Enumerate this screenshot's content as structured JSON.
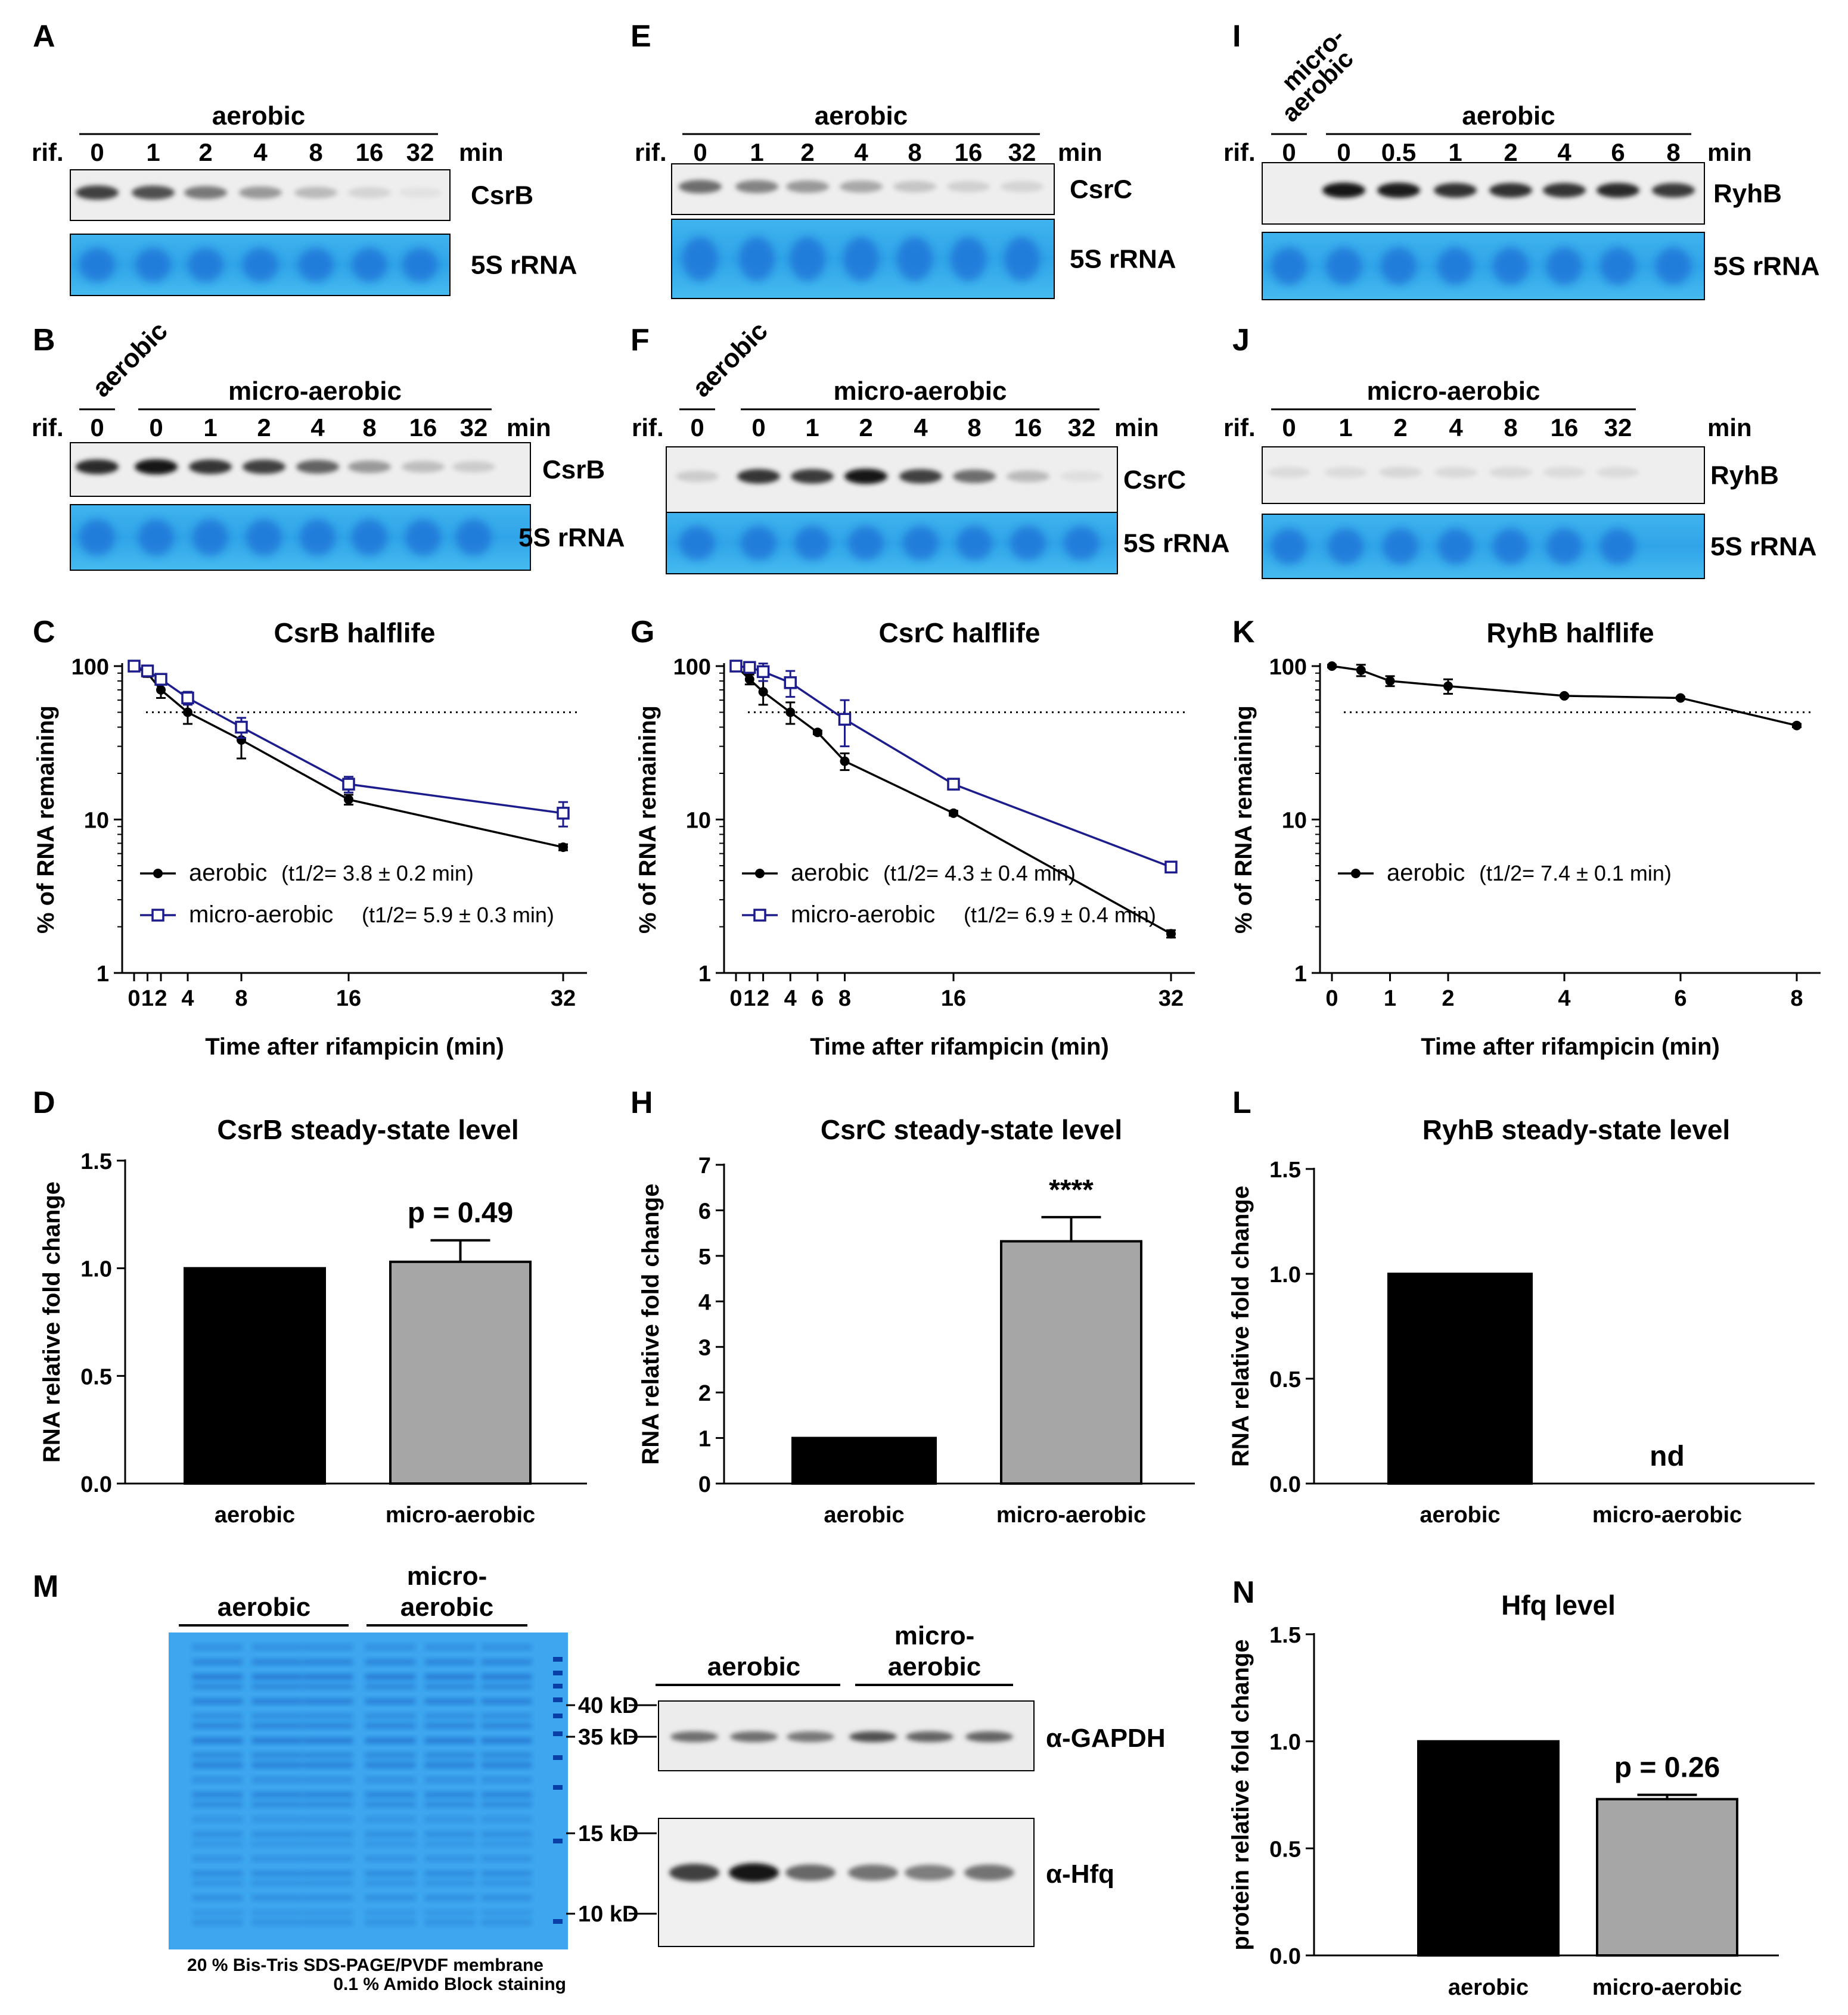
{
  "northern": {
    "rif": "rif.",
    "min": "min",
    "aerobic": "aerobic",
    "micro": "micro-aerobic",
    "micro_top": "micro-",
    "micro_bottom": "aerobic",
    "rrna": "5S rRNA",
    "blots": [
      {
        "id": "A",
        "rna": "CsrB",
        "condition": "aerobic",
        "lanes": [
          "0",
          "1",
          "2",
          "4",
          "8",
          "16",
          "32"
        ],
        "intensity": [
          0.75,
          0.68,
          0.5,
          0.35,
          0.2,
          0.08,
          0.02
        ]
      },
      {
        "id": "B",
        "rna": "CsrB",
        "condition": "micro",
        "leading": "aerobic",
        "lanes": [
          "0",
          "0",
          "1",
          "2",
          "4",
          "8",
          "16",
          "32"
        ],
        "intensity": [
          0.85,
          0.95,
          0.8,
          0.75,
          0.6,
          0.35,
          0.18,
          0.12
        ]
      },
      {
        "id": "E",
        "rna": "CsrC",
        "condition": "aerobic",
        "lanes": [
          "0",
          "1",
          "2",
          "4",
          "8",
          "16",
          "32"
        ],
        "intensity": [
          0.55,
          0.45,
          0.35,
          0.28,
          0.15,
          0.1,
          0.08
        ]
      },
      {
        "id": "F",
        "rna": "CsrC",
        "condition": "micro",
        "leading": "aerobic",
        "lanes": [
          "0",
          "0",
          "1",
          "2",
          "4",
          "8",
          "16",
          "32"
        ],
        "intensity": [
          0.12,
          0.8,
          0.78,
          0.95,
          0.75,
          0.55,
          0.2,
          0.03
        ]
      },
      {
        "id": "I",
        "rna": "RyhB",
        "condition": "aerobic",
        "leading": "micro",
        "lanes": [
          "0",
          "0",
          "0.5",
          "1",
          "2",
          "4",
          "6",
          "8"
        ],
        "intensity": [
          0.0,
          0.95,
          0.92,
          0.82,
          0.82,
          0.8,
          0.85,
          0.78
        ]
      },
      {
        "id": "J",
        "rna": "RyhB",
        "condition": "micro",
        "lanes": [
          "0",
          "1",
          "2",
          "4",
          "8",
          "16",
          "32"
        ],
        "intensity": [
          0.05,
          0.05,
          0.07,
          0.06,
          0.06,
          0.05,
          0.05
        ]
      }
    ]
  },
  "chart_data": [
    {
      "id": "C",
      "type": "line",
      "title": "CsrB halflife",
      "xlabel": "Time after rifampicin (min)",
      "ylabel": "% of RNA remaining",
      "yscale": "log",
      "ylim": [
        1,
        100
      ],
      "yticks": [
        "1",
        "10",
        "100"
      ],
      "xlim": [
        0,
        32
      ],
      "xticks": [
        {
          "v": 0,
          "t": "0"
        },
        {
          "v": 1,
          "t": "1"
        },
        {
          "v": 2,
          "t": "2"
        },
        {
          "v": 4,
          "t": "4"
        },
        {
          "v": 8,
          "t": "8"
        },
        {
          "v": 16,
          "t": "16"
        },
        {
          "v": 32,
          "t": "32"
        }
      ],
      "threshold": 50,
      "series": [
        {
          "name": "aerobic",
          "half_life": "(t1/2= 3.8 ± 0.2 min)",
          "color": "#000000",
          "marker": "circle",
          "x": [
            0,
            1,
            2,
            4,
            8,
            16,
            32
          ],
          "y": [
            100,
            90,
            70,
            50,
            33,
            13.5,
            6.6
          ],
          "err": [
            3,
            5,
            8,
            8,
            8,
            1,
            0.3
          ]
        },
        {
          "name": "micro-aerobic",
          "half_life": "(t1/2= 5.9 ± 0.3 min)",
          "color": "#1c1c8c",
          "marker": "square",
          "x": [
            0,
            1,
            2,
            4,
            8,
            16,
            32
          ],
          "y": [
            100,
            93,
            82,
            62,
            40,
            17,
            11
          ],
          "err": [
            3,
            5,
            5,
            6,
            6,
            2,
            2
          ]
        }
      ]
    },
    {
      "id": "G",
      "type": "line",
      "title": "CsrC halflife",
      "xlabel": "Time after rifampicin (min)",
      "ylabel": "% of RNA remaining",
      "yscale": "log",
      "ylim": [
        1,
        100
      ],
      "yticks": [
        "1",
        "10",
        "100"
      ],
      "xlim": [
        0,
        32
      ],
      "xticks": [
        {
          "v": 0,
          "t": "0"
        },
        {
          "v": 1,
          "t": "1"
        },
        {
          "v": 2,
          "t": "2"
        },
        {
          "v": 4,
          "t": "4"
        },
        {
          "v": 6,
          "t": "6"
        },
        {
          "v": 8,
          "t": "8"
        },
        {
          "v": 16,
          "t": "16"
        },
        {
          "v": 32,
          "t": "32"
        }
      ],
      "threshold": 50,
      "series": [
        {
          "name": "aerobic",
          "half_life": "(t1/2= 4.3 ± 0.4 min)",
          "color": "#000000",
          "marker": "circle",
          "x": [
            0,
            1,
            2,
            4,
            6,
            8,
            16,
            32
          ],
          "y": [
            100,
            82,
            68,
            50,
            37,
            24,
            11,
            1.8
          ],
          "err": [
            3,
            6,
            12,
            8,
            1,
            3,
            0.4,
            0.1
          ]
        },
        {
          "name": "micro-aerobic",
          "half_life": "(t1/2= 6.9 ± 0.4 min)",
          "color": "#1c1c8c",
          "marker": "square",
          "x": [
            0,
            1,
            2,
            4,
            8,
            16,
            32
          ],
          "y": [
            100,
            98,
            92,
            78,
            45,
            17,
            4.9
          ],
          "err": [
            3,
            5,
            12,
            15,
            15,
            1,
            0.3
          ]
        }
      ]
    },
    {
      "id": "K",
      "type": "line",
      "title": "RyhB halflife",
      "xlabel": "Time after rifampicin (min)",
      "ylabel": "% of RNA remaining",
      "yscale": "log",
      "ylim": [
        1,
        100
      ],
      "yticks": [
        "1",
        "10",
        "100"
      ],
      "xlim": [
        0,
        8
      ],
      "xticks": [
        {
          "v": 0,
          "t": "0"
        },
        {
          "v": 1,
          "t": "1"
        },
        {
          "v": 2,
          "t": "2"
        },
        {
          "v": 4,
          "t": "4"
        },
        {
          "v": 6,
          "t": "6"
        },
        {
          "v": 8,
          "t": "8"
        }
      ],
      "threshold": 50,
      "series": [
        {
          "name": "aerobic",
          "half_life": "(t1/2= 7.4 ± 0.1 min)",
          "color": "#000000",
          "marker": "circle",
          "x": [
            0,
            0.5,
            1,
            2,
            4,
            6,
            8
          ],
          "y": [
            100,
            94,
            80,
            74,
            64,
            62,
            41
          ],
          "err": [
            2,
            8,
            6,
            8,
            1,
            1,
            1
          ]
        }
      ]
    },
    {
      "id": "D",
      "type": "bar",
      "title": "CsrB steady-state level",
      "ylabel": "RNA relative fold change",
      "ylim": [
        0,
        1.5
      ],
      "yticks": [
        "0.0",
        "0.5",
        "1.0",
        "1.5"
      ],
      "categories": [
        "aerobic",
        "micro-aerobic"
      ],
      "values": [
        1.0,
        1.03
      ],
      "err": [
        0,
        0.1
      ],
      "colors": [
        "#000000",
        "#a6a6a6"
      ],
      "annotation": "p = 0.49"
    },
    {
      "id": "H",
      "type": "bar",
      "title": "CsrC steady-state level",
      "ylabel": "RNA relative fold change",
      "ylim": [
        0,
        7
      ],
      "yticks": [
        "0",
        "1",
        "2",
        "3",
        "4",
        "5",
        "6",
        "7"
      ],
      "categories": [
        "aerobic",
        "micro-aerobic"
      ],
      "values": [
        1.0,
        5.32
      ],
      "err": [
        0,
        0.53
      ],
      "colors": [
        "#000000",
        "#a6a6a6"
      ],
      "annotation": "****"
    },
    {
      "id": "L",
      "type": "bar",
      "title": "RyhB steady-state level",
      "ylabel": "RNA relative fold change",
      "ylim": [
        0,
        1.5
      ],
      "yticks": [
        "0.0",
        "0.5",
        "1.0",
        "1.5"
      ],
      "categories": [
        "aerobic",
        "micro-aerobic"
      ],
      "values": [
        1.0,
        0
      ],
      "err": [
        0,
        0
      ],
      "colors": [
        "#000000",
        "#a6a6a6"
      ],
      "annotation": "nd"
    },
    {
      "id": "N",
      "type": "bar",
      "title": "Hfq level",
      "ylabel": "protein relative fold change",
      "ylim": [
        0,
        1.5
      ],
      "yticks": [
        "0.0",
        "0.5",
        "1.0",
        "1.5"
      ],
      "categories": [
        "aerobic",
        "micro-aerobic"
      ],
      "values": [
        1.0,
        0.73
      ],
      "err": [
        0,
        0.02
      ],
      "colors": [
        "#000000",
        "#a6a6a6"
      ],
      "annotation": "p = 0.26"
    }
  ],
  "panel_M": {
    "label": "M",
    "aerobic": "aerobic",
    "micro_top": "micro-",
    "micro_bottom": "aerobic",
    "markers": [
      "40 kD",
      "35 kD",
      "15 kD",
      "10 kD"
    ],
    "gapdh": "α-GAPDH",
    "hfq": "α-Hfq",
    "gapdh_intensity": [
      0.55,
      0.55,
      0.5,
      0.7,
      0.6,
      0.6
    ],
    "hfq_intensity": [
      0.75,
      0.95,
      0.55,
      0.5,
      0.45,
      0.5
    ],
    "caption_line1": "20 % Bis-Tris SDS-PAGE/PVDF membrane",
    "caption_line2": "0.1 % Amido Block staining"
  }
}
